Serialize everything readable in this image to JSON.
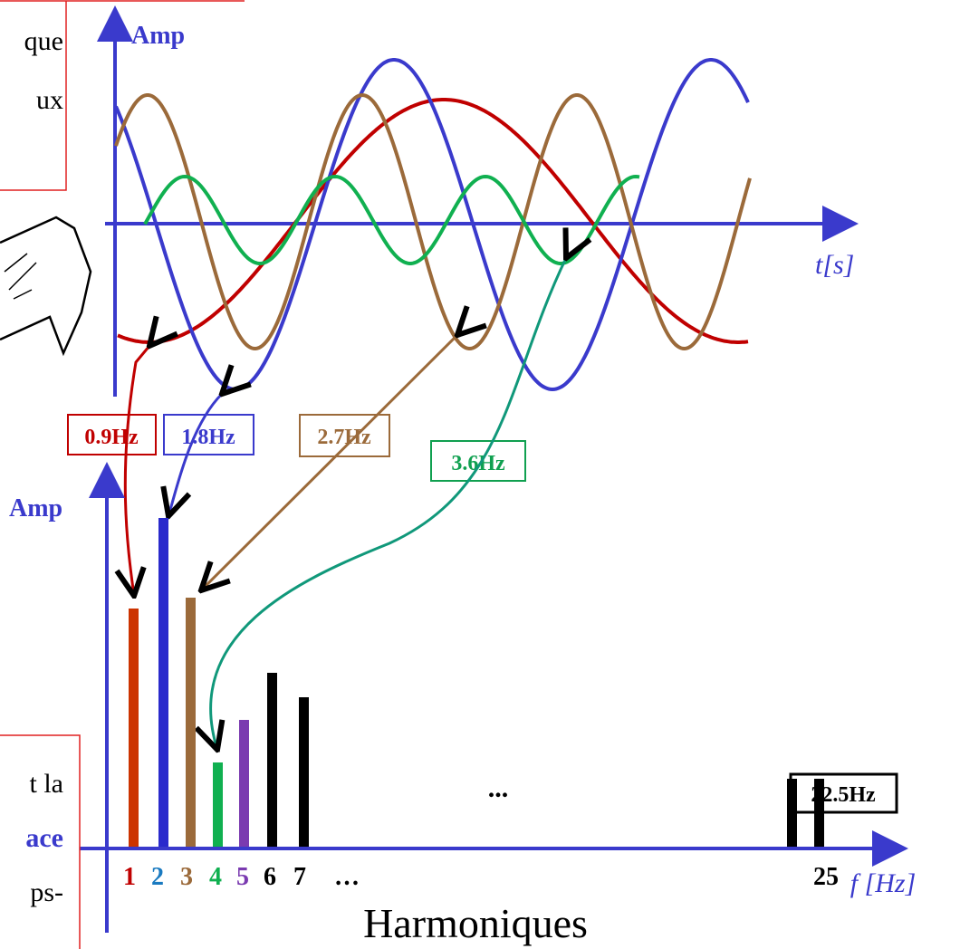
{
  "top_box": {
    "lines": [
      "que",
      "ux"
    ]
  },
  "time_plot": {
    "y_label": "Amp",
    "x_label": "t[s]"
  },
  "frequency_labels": [
    "0.9Hz",
    "1.8Hz",
    "2.7Hz",
    "3.6Hz",
    "22.5Hz"
  ],
  "spectrum": {
    "y_label": "Amp",
    "x_label": "f [Hz]",
    "ellipsis": "...",
    "harmonic_numbers": [
      "1",
      "2",
      "3",
      "4",
      "5",
      "6",
      "7",
      "…",
      "25"
    ],
    "caption": "Harmoniques"
  },
  "bottom_box": {
    "lines": [
      "t la",
      "ace",
      "ps-"
    ]
  }
}
